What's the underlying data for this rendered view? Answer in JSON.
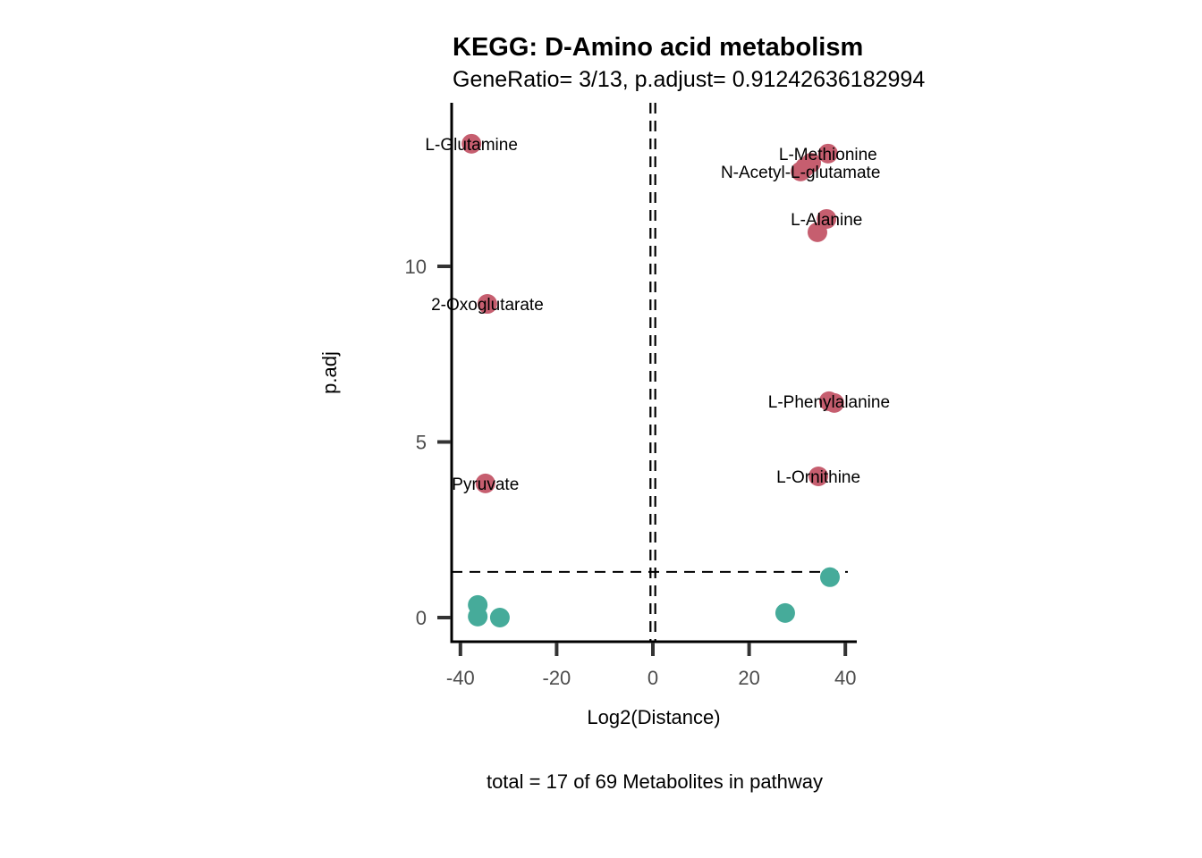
{
  "chart_data": {
    "type": "scatter",
    "title": "KEGG: D-Amino acid metabolism",
    "subtitle": "GeneRatio= 3/13, p.adjust= 0.91242636182994",
    "xlabel": "Log2(Distance)",
    "ylabel": "p.adj",
    "caption": "total = 17 of 69 Metabolites in pathway",
    "xlim": [
      -42,
      42
    ],
    "ylim": [
      -0.7,
      14.8
    ],
    "x_ticks": [
      -40,
      -20,
      0,
      20,
      40
    ],
    "x_tick_labels": [
      "-40",
      "-20",
      "0",
      "20",
      "40"
    ],
    "y_ticks": [
      0,
      5,
      10
    ],
    "y_tick_labels": [
      "0",
      "5",
      "10"
    ],
    "grid": false,
    "legend": "none",
    "reference_lines": {
      "horizontal": 1.3,
      "vertical": [
        -0.5,
        0.5
      ]
    },
    "colors": {
      "significant": "#C65E6F",
      "not_significant": "#46AB9A",
      "axis": "#000000",
      "tick": "#333333"
    },
    "series": [
      {
        "name": "significant",
        "points": [
          {
            "x": -37.7,
            "y": 13.49,
            "label": "L-Glutamine"
          },
          {
            "x": -34.4,
            "y": 8.93,
            "label": "2-Oxoglutarate"
          },
          {
            "x": -34.8,
            "y": 3.82,
            "label": "Pyruvate"
          },
          {
            "x": 36.4,
            "y": 13.21,
            "label": "L-Methionine"
          },
          {
            "x": 32.9,
            "y": 12.95,
            "label": ""
          },
          {
            "x": 31.6,
            "y": 12.82,
            "label": ""
          },
          {
            "x": 30.7,
            "y": 12.7,
            "label": "N-Acetyl-L-glutamate"
          },
          {
            "x": 36.1,
            "y": 11.35,
            "label": "L-Alanine"
          },
          {
            "x": 34.2,
            "y": 10.97,
            "label": ""
          },
          {
            "x": 36.6,
            "y": 6.16,
            "label": "L-Phenylalanine"
          },
          {
            "x": 37.7,
            "y": 6.11,
            "label": ""
          },
          {
            "x": 34.4,
            "y": 4.02,
            "label": "L-Ornithine"
          }
        ]
      },
      {
        "name": "not_significant",
        "points": [
          {
            "x": -36.4,
            "y": 0.36,
            "label": ""
          },
          {
            "x": -36.4,
            "y": 0.03,
            "label": ""
          },
          {
            "x": -31.8,
            "y": 0.0,
            "label": ""
          },
          {
            "x": 27.5,
            "y": 0.13,
            "label": ""
          },
          {
            "x": 36.8,
            "y": 1.15,
            "label": ""
          }
        ]
      }
    ]
  }
}
